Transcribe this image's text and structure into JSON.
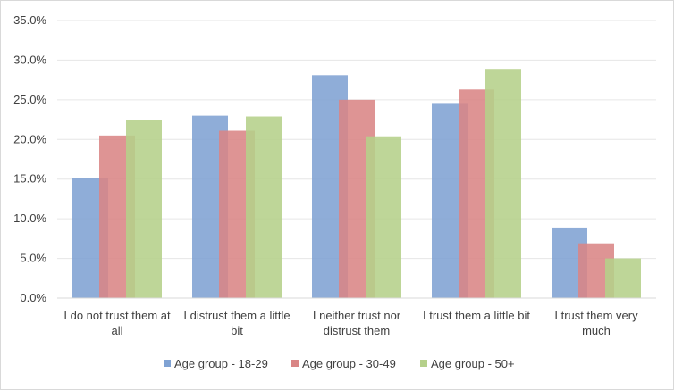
{
  "chart_data": {
    "type": "bar",
    "title": "",
    "xlabel": "",
    "ylabel": "",
    "ylim": [
      0,
      35
    ],
    "yticks": [
      "0.0%",
      "5.0%",
      "10.0%",
      "15.0%",
      "20.0%",
      "25.0%",
      "30.0%",
      "35.0%"
    ],
    "grid": true,
    "legend_position": "bottom",
    "categories": [
      [
        "I do not trust them at",
        "all"
      ],
      [
        "I distrust them a little",
        "bit"
      ],
      [
        "I neither trust nor",
        "distrust them"
      ],
      [
        "I trust them a little bit"
      ],
      [
        "I trust them very",
        "much"
      ]
    ],
    "series": [
      {
        "name": "Age group - 18-29",
        "color": "#7fa2d3",
        "values": [
          15.1,
          23.0,
          28.1,
          24.6,
          8.9
        ]
      },
      {
        "name": "Age group - 30-49",
        "color": "#d98585",
        "values": [
          20.5,
          21.1,
          25.0,
          26.3,
          6.9
        ]
      },
      {
        "name": "Age group - 50+",
        "color": "#b5d08a",
        "values": [
          22.4,
          22.9,
          20.4,
          28.9,
          5.0
        ]
      }
    ]
  }
}
